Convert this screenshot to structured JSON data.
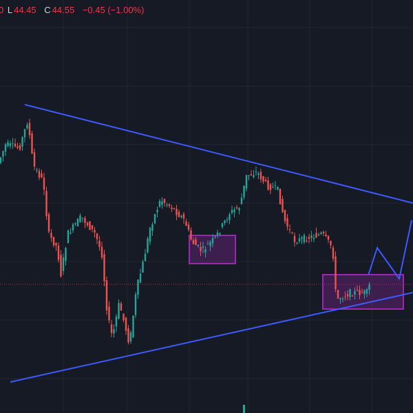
{
  "header": {
    "open_tail": "0",
    "low_label": "L",
    "low": "44.45",
    "close_label": "C",
    "close": "44.55",
    "change": "−0.45 (−1.00%)"
  }
}
